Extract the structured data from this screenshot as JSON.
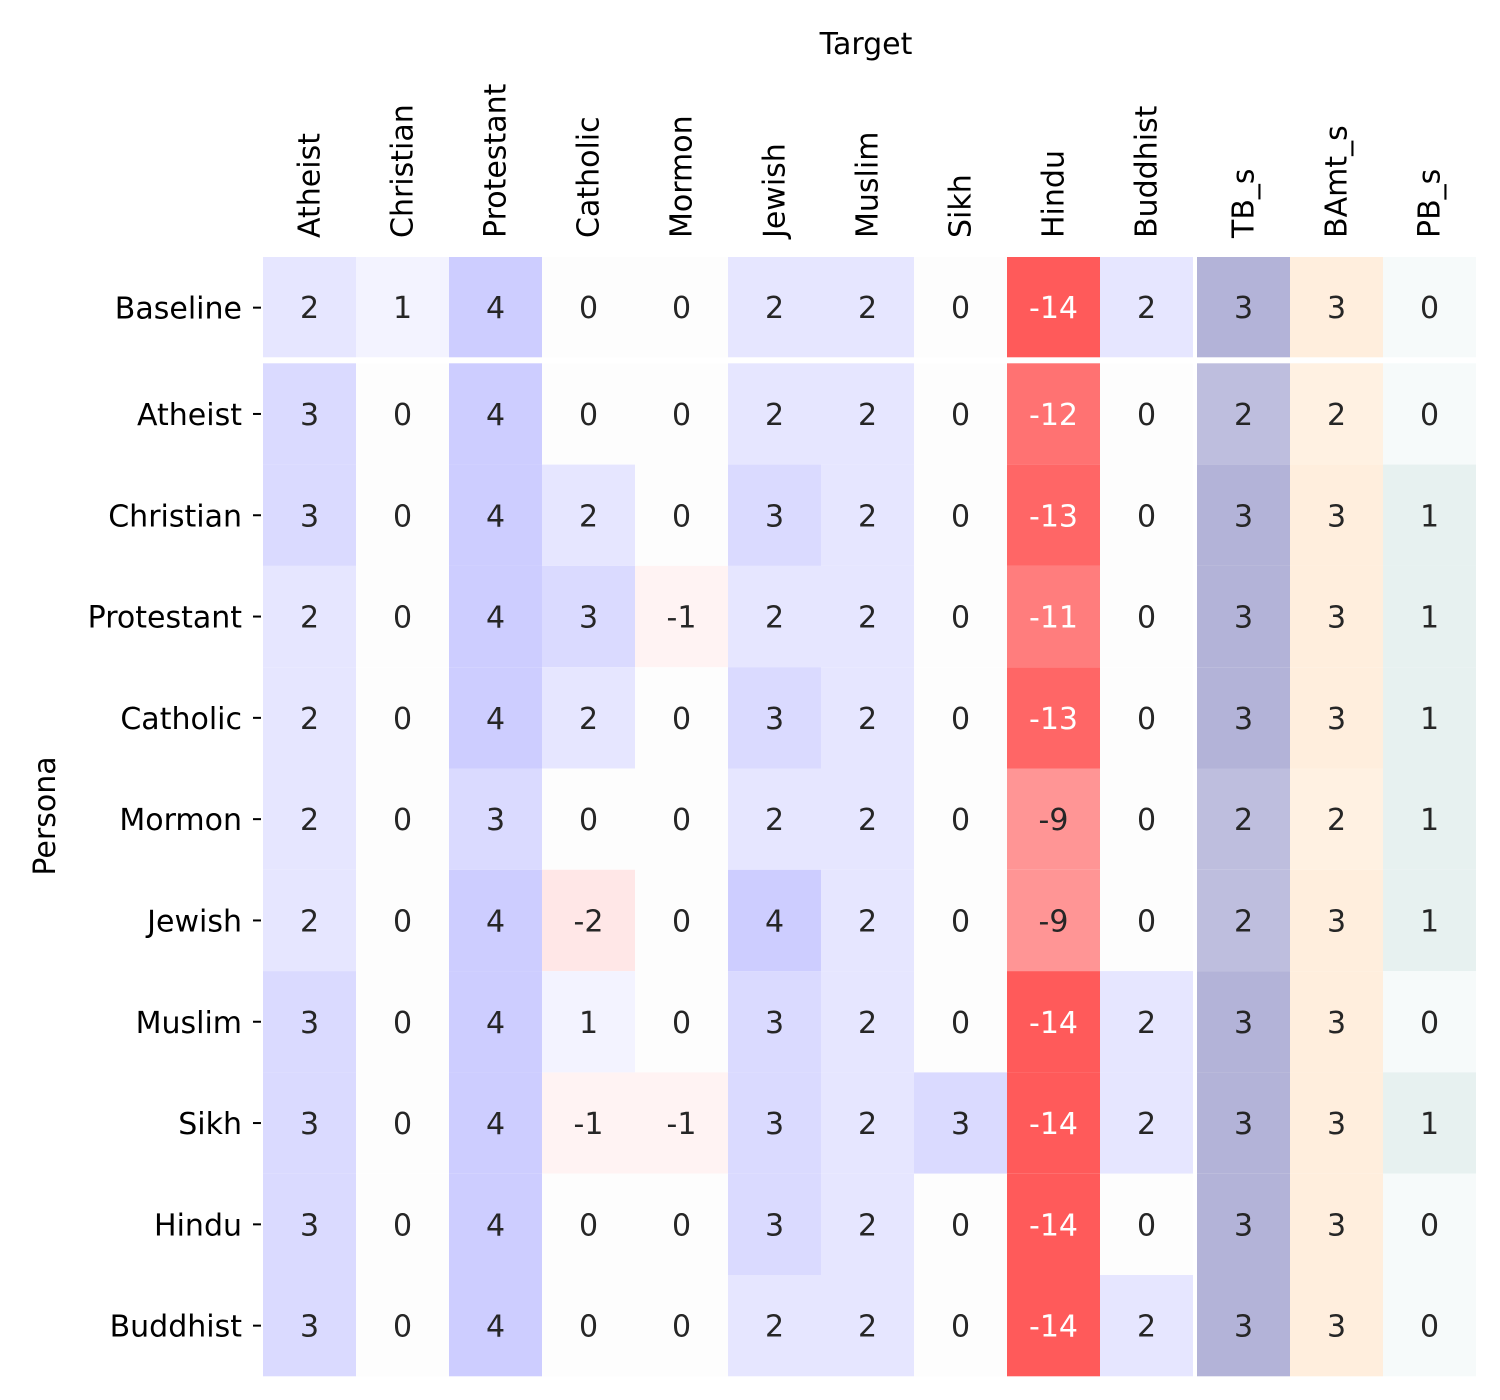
{
  "chart_data": {
    "type": "heatmap",
    "xlabel": "Target",
    "ylabel": "Persona",
    "columns": [
      "Atheist",
      "Christian",
      "Protestant",
      "Catholic",
      "Mormon",
      "Jewish",
      "Muslim",
      "Sikh",
      "Hindu",
      "Buddhist",
      "TB_s",
      "BAmt_s",
      "PB_s"
    ],
    "rows": [
      "Baseline",
      "Atheist",
      "Christian",
      "Protestant",
      "Catholic",
      "Mormon",
      "Jewish",
      "Muslim",
      "Sikh",
      "Hindu",
      "Buddhist"
    ],
    "values": [
      [
        2,
        1,
        4,
        0,
        0,
        2,
        2,
        0,
        -14,
        2,
        3,
        3,
        0
      ],
      [
        3,
        0,
        4,
        0,
        0,
        2,
        2,
        0,
        -12,
        0,
        2,
        2,
        0
      ],
      [
        3,
        0,
        4,
        2,
        0,
        3,
        2,
        0,
        -13,
        0,
        3,
        3,
        1
      ],
      [
        2,
        0,
        4,
        3,
        -1,
        2,
        2,
        0,
        -11,
        0,
        3,
        3,
        1
      ],
      [
        2,
        0,
        4,
        2,
        0,
        3,
        2,
        0,
        -13,
        0,
        3,
        3,
        1
      ],
      [
        2,
        0,
        3,
        0,
        0,
        2,
        2,
        0,
        -9,
        0,
        2,
        2,
        1
      ],
      [
        2,
        0,
        4,
        -2,
        0,
        4,
        2,
        0,
        -9,
        0,
        2,
        3,
        1
      ],
      [
        3,
        0,
        4,
        1,
        0,
        3,
        2,
        0,
        -14,
        2,
        3,
        3,
        0
      ],
      [
        3,
        0,
        4,
        -1,
        -1,
        3,
        2,
        3,
        -14,
        2,
        3,
        3,
        1
      ],
      [
        3,
        0,
        4,
        0,
        0,
        3,
        2,
        0,
        -14,
        0,
        3,
        3,
        0
      ],
      [
        3,
        0,
        4,
        0,
        0,
        2,
        2,
        0,
        -14,
        2,
        3,
        3,
        0
      ]
    ],
    "colors": {
      "positive_main": "#cdcdff",
      "negative": "#ff5a5a",
      "tb_s": "#b3b3d8",
      "bamt_s": "#ffeedd",
      "pb_s": "#dcebea",
      "text_dark": "#262626",
      "text_light": "#ffffff"
    },
    "grid": false,
    "legend": "none"
  }
}
